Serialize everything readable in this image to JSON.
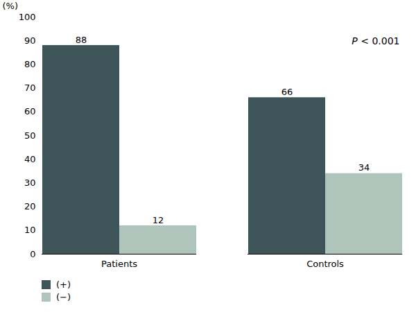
{
  "chart_data": {
    "type": "bar",
    "categories": [
      "Patients",
      "Controls"
    ],
    "series": [
      {
        "name": "(+)",
        "color": "#3d5459",
        "values": [
          88,
          66
        ]
      },
      {
        "name": "(−)",
        "color": "#afc5bc",
        "values": [
          12,
          34
        ]
      }
    ],
    "ylabel": "(%)",
    "ylim": [
      0,
      100
    ],
    "yticks": [
      0,
      10,
      20,
      30,
      40,
      50,
      60,
      70,
      80,
      90,
      100
    ],
    "grid": false,
    "legend": "bottom",
    "data_labels": true,
    "annotations": [
      "P < 0.001"
    ]
  }
}
